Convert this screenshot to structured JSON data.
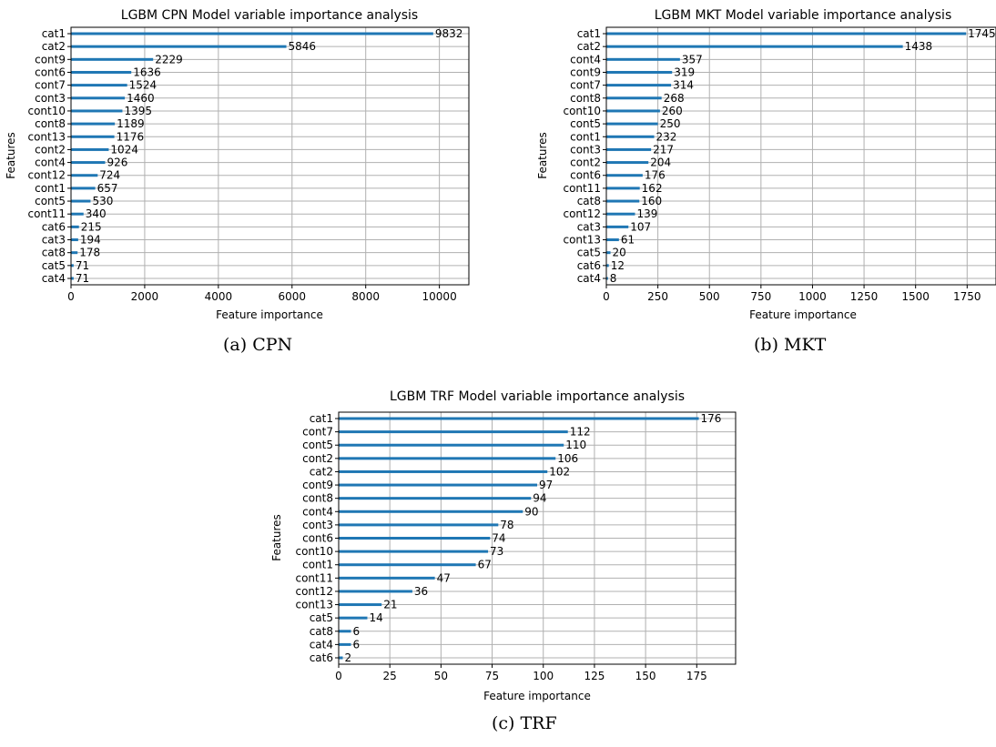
{
  "chart_data": [
    {
      "type": "bar",
      "orientation": "horizontal",
      "title": "LGBM CPN Model variable importance analysis",
      "xlabel": "Feature importance",
      "ylabel": "Features",
      "xlim": [
        0,
        10800
      ],
      "xticks": [
        0,
        2000,
        4000,
        6000,
        8000,
        10000
      ],
      "grid": true,
      "categories": [
        "cat1",
        "cat2",
        "cont9",
        "cont6",
        "cont7",
        "cont3",
        "cont10",
        "cont8",
        "cont13",
        "cont2",
        "cont4",
        "cont12",
        "cont1",
        "cont5",
        "cont11",
        "cat6",
        "cat3",
        "cat8",
        "cat5",
        "cat4"
      ],
      "values": [
        9832,
        5846,
        2229,
        1636,
        1524,
        1460,
        1395,
        1189,
        1176,
        1024,
        926,
        724,
        657,
        530,
        340,
        215,
        194,
        178,
        71,
        71
      ],
      "caption": "(a) CPN"
    },
    {
      "type": "bar",
      "orientation": "horizontal",
      "title": "LGBM MKT Model variable importance analysis",
      "xlabel": "Feature importance",
      "ylabel": "Features",
      "xlim": [
        0,
        1890
      ],
      "xticks": [
        0,
        250,
        500,
        750,
        1000,
        1250,
        1500,
        1750
      ],
      "grid": true,
      "categories": [
        "cat1",
        "cat2",
        "cont4",
        "cont9",
        "cont7",
        "cont8",
        "cont10",
        "cont5",
        "cont1",
        "cont3",
        "cont2",
        "cont6",
        "cont11",
        "cat8",
        "cont12",
        "cat3",
        "cont13",
        "cat5",
        "cat6",
        "cat4"
      ],
      "values": [
        1745,
        1438,
        357,
        319,
        314,
        268,
        260,
        250,
        232,
        217,
        204,
        176,
        162,
        160,
        139,
        107,
        61,
        20,
        12,
        8
      ],
      "caption": "(b) MKT"
    },
    {
      "type": "bar",
      "orientation": "horizontal",
      "title": "LGBM TRF Model variable importance analysis",
      "xlabel": "Feature importance",
      "ylabel": "Features",
      "xlim": [
        0,
        194
      ],
      "xticks": [
        0,
        25,
        50,
        75,
        100,
        125,
        150,
        175
      ],
      "grid": true,
      "categories": [
        "cat1",
        "cont7",
        "cont5",
        "cont2",
        "cat2",
        "cont9",
        "cont8",
        "cont4",
        "cont3",
        "cont6",
        "cont10",
        "cont1",
        "cont11",
        "cont12",
        "cont13",
        "cat5",
        "cat8",
        "cat4",
        "cat6"
      ],
      "values": [
        176,
        112,
        110,
        106,
        102,
        97,
        94,
        90,
        78,
        74,
        73,
        67,
        47,
        36,
        21,
        14,
        6,
        6,
        2
      ],
      "caption": "(c) TRF"
    }
  ]
}
